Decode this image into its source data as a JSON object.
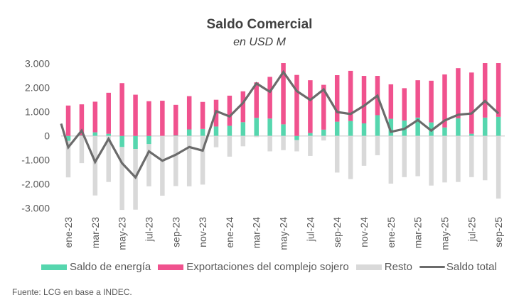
{
  "chart_data": {
    "type": "bar",
    "stacked": true,
    "title": "Saldo Comercial",
    "subtitle": "en USD M",
    "xlabel": "",
    "ylabel": "",
    "ylim": [
      -3000,
      3000
    ],
    "yticks": [
      3000,
      2000,
      1000,
      0,
      -1000,
      -2000,
      -3000
    ],
    "ytick_labels": [
      "3.000",
      "2.000",
      "1.000",
      "0",
      "-1.000",
      "-2.000",
      "-3.000"
    ],
    "grid": false,
    "legend_position": "bottom",
    "categories": [
      "ene-23",
      "feb-23",
      "mar-23",
      "abr-23",
      "may-23",
      "jun-23",
      "jul-23",
      "ago-23",
      "sep-23",
      "oct-23",
      "nov-23",
      "dic-23",
      "ene-24",
      "feb-24",
      "mar-24",
      "abr-24",
      "may-24",
      "jun-24",
      "jul-24",
      "ago-24",
      "sep-24",
      "oct-24",
      "nov-24",
      "dic-24",
      "ene-25",
      "feb-25",
      "mar-25",
      "abr-25",
      "may-25",
      "jun-25",
      "jul-25",
      "ago-25",
      "sep-25"
    ],
    "shown_tick_labels": [
      "ene-23",
      "mar-23",
      "may-23",
      "jul-23",
      "sep-23",
      "nov-23",
      "ene-24",
      "mar-24",
      "may-24",
      "jul-24",
      "sep-24",
      "nov-24",
      "ene-25",
      "mar-25",
      "may-25",
      "jul-25",
      "sep-25"
    ],
    "series": [
      {
        "name": "Saldo de energía",
        "kind": "bar",
        "color": "#56D6AE",
        "values": [
          -200,
          20,
          150,
          90,
          -460,
          -540,
          -340,
          0,
          20,
          270,
          290,
          390,
          420,
          570,
          750,
          720,
          480,
          -170,
          120,
          260,
          590,
          620,
          520,
          860,
          710,
          640,
          760,
          560,
          350,
          730,
          90,
          760,
          790
        ]
      },
      {
        "name": "Exportaciones del complejo sojero",
        "kind": "bar",
        "color": "#F0528E",
        "values": [
          1260,
          1290,
          1270,
          1700,
          2190,
          1710,
          1440,
          1460,
          1270,
          1380,
          1120,
          1110,
          1250,
          1280,
          1470,
          1730,
          2540,
          2530,
          2190,
          1860,
          1930,
          2080,
          1970,
          1630,
          1430,
          1340,
          1550,
          1730,
          2200,
          2080,
          2540,
          2260,
          2230
        ]
      },
      {
        "name": "Resto",
        "kind": "bar",
        "color": "#D9D9D9",
        "values": [
          -1520,
          -1130,
          -2470,
          -1910,
          -2610,
          -2520,
          -1750,
          -2480,
          -2080,
          -2090,
          -2020,
          -470,
          -860,
          -430,
          -50,
          -640,
          -590,
          -470,
          -830,
          -190,
          -1520,
          -1790,
          -1240,
          -800,
          -1980,
          -1710,
          -1670,
          -2060,
          -1930,
          -1910,
          -1710,
          -1840,
          -2600
        ]
      },
      {
        "name": "Saldo total",
        "kind": "line",
        "color": "#6B6B6B",
        "lead_in_value": 510,
        "values": [
          -470,
          220,
          -1080,
          -120,
          -1130,
          -1720,
          -640,
          -1030,
          -780,
          -460,
          -610,
          1030,
          810,
          1370,
          2180,
          1830,
          2650,
          1860,
          1490,
          1930,
          990,
          910,
          1250,
          1670,
          170,
          290,
          660,
          220,
          640,
          880,
          930,
          1450,
          930
        ]
      }
    ]
  },
  "legend": {
    "items": [
      {
        "label": "Saldo de energía",
        "color": "#56D6AE"
      },
      {
        "label": "Exportaciones del complejo sojero",
        "color": "#F0528E"
      },
      {
        "label": "Resto",
        "color": "#D9D9D9"
      },
      {
        "label": "Saldo total",
        "color": "#6B6B6B"
      }
    ]
  },
  "source": "Fuente: LCG en base a INDEC."
}
